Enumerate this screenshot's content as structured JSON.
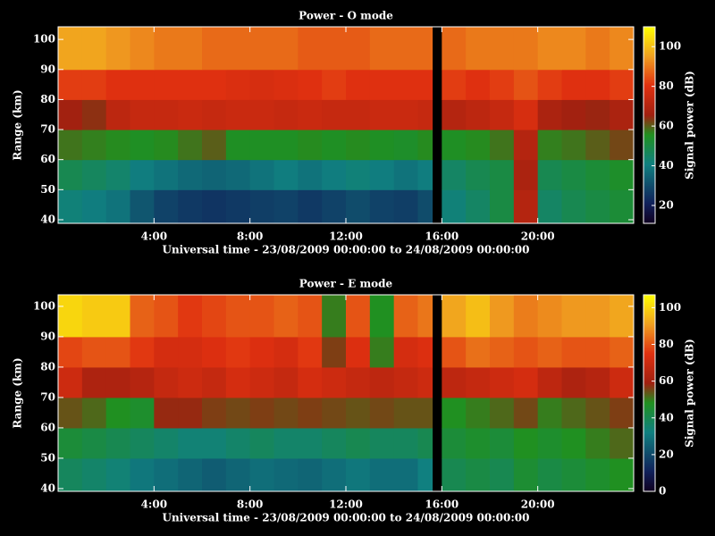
{
  "chart_data": [
    {
      "type": "heatmap",
      "title": "Power - O mode",
      "xlabel": "Universal time - 23/08/2009 00:00:00 to 24/08/2009 00:00:00",
      "ylabel": "Range (km)",
      "zlabel": "Signal power (dB)",
      "xlim": [
        0,
        24
      ],
      "xticks": [
        {
          "value": 4,
          "label": "4:00"
        },
        {
          "value": 8,
          "label": "8:00"
        },
        {
          "value": 12,
          "label": "12:00"
        },
        {
          "value": 16,
          "label": "16:00"
        },
        {
          "value": 20,
          "label": "20:00"
        }
      ],
      "ylim": [
        38.8,
        104.2
      ],
      "yticks": [
        40,
        50,
        60,
        70,
        80,
        90,
        100
      ],
      "zlim": [
        11,
        110
      ],
      "zticks": [
        20,
        40,
        60,
        80,
        100
      ],
      "xbins": [
        0,
        1,
        2,
        3,
        4,
        5,
        6,
        7,
        8,
        9,
        10,
        11,
        12,
        13,
        14,
        15,
        15.6,
        16,
        17,
        18,
        19,
        20,
        21,
        22,
        23,
        24
      ],
      "ybins": [
        38.8,
        50,
        60,
        70,
        80,
        90,
        104.2
      ],
      "z": [
        [
          42,
          40,
          38,
          32,
          28,
          26,
          25,
          26,
          27,
          28,
          26,
          28,
          30,
          28,
          27,
          30,
          null,
          42,
          45,
          50,
          70,
          45,
          48,
          50,
          52
        ],
        [
          48,
          46,
          44,
          40,
          38,
          36,
          35,
          36,
          38,
          40,
          38,
          40,
          42,
          40,
          38,
          40,
          null,
          45,
          48,
          50,
          68,
          48,
          50,
          52,
          54
        ],
        [
          58,
          57,
          56,
          55,
          56,
          58,
          60,
          55,
          55,
          55,
          56,
          55,
          56,
          55,
          54,
          56,
          null,
          55,
          56,
          58,
          70,
          57,
          58,
          60,
          62
        ],
        [
          66,
          64,
          72,
          74,
          74,
          75,
          74,
          75,
          75,
          74,
          75,
          74,
          74,
          75,
          75,
          74,
          null,
          70,
          72,
          74,
          78,
          68,
          66,
          65,
          68
        ],
        [
          82,
          82,
          80,
          80,
          80,
          80,
          80,
          79,
          78,
          79,
          80,
          82,
          80,
          80,
          80,
          80,
          null,
          82,
          80,
          82,
          85,
          82,
          80,
          80,
          82
        ],
        [
          96,
          96,
          94,
          92,
          90,
          90,
          88,
          88,
          88,
          88,
          86,
          86,
          86,
          88,
          88,
          88,
          null,
          88,
          90,
          90,
          90,
          92,
          92,
          90,
          92
        ]
      ]
    },
    {
      "type": "heatmap",
      "title": "Power - E mode",
      "xlabel": "Universal time - 23/08/2009 00:00:00 to 24/08/2009 00:00:00",
      "ylabel": "Range (km)",
      "zlabel": "Signal power (dB)",
      "xlim": [
        0,
        24
      ],
      "xticks": [
        {
          "value": 4,
          "label": "4:00"
        },
        {
          "value": 8,
          "label": "8:00"
        },
        {
          "value": 12,
          "label": "12:00"
        },
        {
          "value": 16,
          "label": "16:00"
        },
        {
          "value": 20,
          "label": "20:00"
        }
      ],
      "ylim": [
        39.1,
        103.8
      ],
      "yticks": [
        40,
        50,
        60,
        70,
        80,
        90,
        100
      ],
      "zlim": [
        0,
        107
      ],
      "zticks": [
        0,
        20,
        40,
        60,
        80,
        100
      ],
      "xbins": [
        0,
        1,
        2,
        3,
        4,
        5,
        6,
        7,
        8,
        9,
        10,
        11,
        12,
        13,
        14,
        15,
        15.6,
        16,
        17,
        18,
        19,
        20,
        21,
        22,
        23,
        24
      ],
      "ybins": [
        39.1,
        50,
        60,
        70,
        80,
        90,
        103.8
      ],
      "z": [
        [
          38,
          36,
          34,
          30,
          28,
          26,
          24,
          26,
          28,
          27,
          26,
          28,
          30,
          28,
          28,
          32,
          null,
          40,
          42,
          40,
          45,
          42,
          44,
          46,
          48
        ],
        [
          44,
          42,
          40,
          38,
          36,
          34,
          34,
          36,
          38,
          36,
          36,
          38,
          40,
          38,
          38,
          40,
          null,
          44,
          46,
          44,
          48,
          46,
          48,
          50,
          52
        ],
        [
          54,
          52,
          48,
          46,
          58,
          58,
          56,
          55,
          56,
          55,
          56,
          55,
          54,
          55,
          54,
          54,
          null,
          48,
          50,
          52,
          55,
          50,
          52,
          54,
          56
        ],
        [
          70,
          62,
          62,
          64,
          68,
          70,
          68,
          72,
          70,
          68,
          72,
          70,
          68,
          66,
          68,
          70,
          null,
          66,
          68,
          70,
          72,
          66,
          62,
          64,
          70
        ],
        [
          78,
          80,
          80,
          76,
          72,
          72,
          74,
          76,
          74,
          72,
          76,
          56,
          74,
          50,
          72,
          74,
          null,
          80,
          84,
          82,
          80,
          82,
          80,
          80,
          82
        ],
        [
          100,
          98,
          98,
          82,
          80,
          76,
          78,
          80,
          80,
          82,
          80,
          50,
          80,
          48,
          82,
          85,
          null,
          92,
          96,
          90,
          86,
          88,
          90,
          90,
          92
        ]
      ]
    }
  ]
}
